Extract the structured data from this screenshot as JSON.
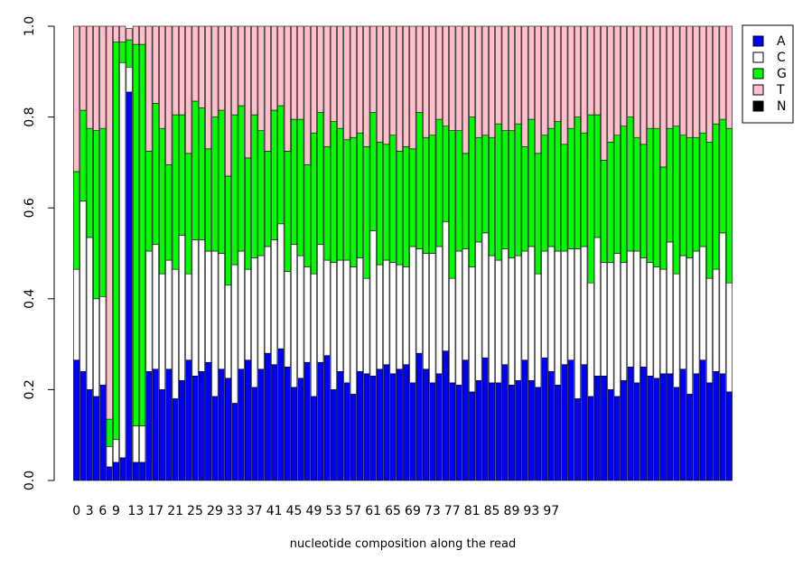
{
  "chart_data": {
    "type": "bar",
    "stacked": true,
    "title": "",
    "xlabel": "nucleotide composition along the read",
    "ylabel": "",
    "ylim": [
      0,
      1
    ],
    "yticks": [
      "0.0",
      "0.2",
      "0.4",
      "0.6",
      "0.8",
      "1.0"
    ],
    "xtick_labels": [
      "0",
      "3",
      "6",
      "9",
      "13",
      "17",
      "21",
      "25",
      "29",
      "33",
      "37",
      "41",
      "45",
      "49",
      "53",
      "57",
      "61",
      "65",
      "69",
      "73",
      "77",
      "81",
      "85",
      "89",
      "93",
      "97"
    ],
    "xtick_positions": [
      0,
      2,
      4,
      6,
      9,
      12,
      15,
      18,
      21,
      24,
      27,
      30,
      33,
      36,
      39,
      42,
      45,
      48,
      51,
      54,
      57,
      60,
      63,
      66,
      69,
      72
    ],
    "positions": [
      0,
      1,
      2,
      3,
      4,
      5,
      6,
      7,
      8,
      9,
      10,
      11,
      12,
      13,
      14,
      15,
      16,
      17,
      18,
      19,
      20,
      21,
      22,
      23,
      24,
      25,
      26,
      27,
      28,
      29,
      30,
      31,
      32,
      33,
      34,
      35,
      36,
      37,
      38,
      39,
      40,
      41,
      42,
      43,
      44,
      45,
      46,
      47,
      48,
      49,
      50,
      51,
      52,
      53,
      54,
      55,
      56,
      57,
      58,
      59,
      60,
      61,
      62,
      63,
      64,
      65,
      66,
      67,
      68,
      69,
      70,
      71,
      72,
      73,
      74,
      75,
      76,
      77,
      78,
      79,
      80,
      81,
      82,
      83,
      84,
      85,
      86,
      87,
      88,
      89,
      90,
      91,
      92,
      93,
      94,
      95,
      96,
      97,
      98,
      99
    ],
    "legend_position": "top-right",
    "series": [
      {
        "name": "A",
        "color": "#0000ff",
        "values": [
          0.265,
          0.24,
          0.2,
          0.185,
          0.21,
          0.03,
          0.04,
          0.05,
          0.855,
          0.04,
          0.04,
          0.24,
          0.245,
          0.2,
          0.245,
          0.18,
          0.22,
          0.265,
          0.23,
          0.24,
          0.26,
          0.185,
          0.245,
          0.225,
          0.17,
          0.245,
          0.265,
          0.205,
          0.245,
          0.28,
          0.255,
          0.29,
          0.25,
          0.205,
          0.225,
          0.26,
          0.185,
          0.26,
          0.275,
          0.2,
          0.24,
          0.215,
          0.19,
          0.24,
          0.235,
          0.23,
          0.245,
          0.255,
          0.235,
          0.245,
          0.255,
          0.215,
          0.28,
          0.245,
          0.215,
          0.235,
          0.285,
          0.215,
          0.21,
          0.265,
          0.195,
          0.22,
          0.27,
          0.215,
          0.215,
          0.255,
          0.21,
          0.22,
          0.265,
          0.22,
          0.205,
          0.27,
          0.24,
          0.21,
          0.255,
          0.265,
          0.18,
          0.255,
          0.185,
          0.23,
          0.23,
          0.2,
          0.185,
          0.22,
          0.25,
          0.215,
          0.25,
          0.23,
          0.225,
          0.235,
          0.235,
          0.205,
          0.245,
          0.19,
          0.235,
          0.265,
          0.215,
          0.24,
          0.235,
          0.195
        ]
      },
      {
        "name": "C",
        "color": "#ffffff",
        "values": [
          0.2,
          0.375,
          0.335,
          0.215,
          0.195,
          0.045,
          0.05,
          0.87,
          0.055,
          0.08,
          0.08,
          0.265,
          0.275,
          0.255,
          0.24,
          0.285,
          0.32,
          0.19,
          0.3,
          0.29,
          0.245,
          0.32,
          0.255,
          0.205,
          0.305,
          0.26,
          0.2,
          0.285,
          0.25,
          0.235,
          0.275,
          0.275,
          0.21,
          0.315,
          0.27,
          0.21,
          0.27,
          0.26,
          0.21,
          0.28,
          0.245,
          0.27,
          0.28,
          0.25,
          0.21,
          0.32,
          0.23,
          0.23,
          0.245,
          0.23,
          0.215,
          0.3,
          0.23,
          0.255,
          0.285,
          0.28,
          0.285,
          0.23,
          0.295,
          0.245,
          0.275,
          0.305,
          0.275,
          0.28,
          0.27,
          0.255,
          0.28,
          0.275,
          0.24,
          0.295,
          0.25,
          0.235,
          0.275,
          0.295,
          0.25,
          0.245,
          0.33,
          0.26,
          0.25,
          0.305,
          0.25,
          0.28,
          0.315,
          0.26,
          0.255,
          0.29,
          0.24,
          0.25,
          0.245,
          0.23,
          0.29,
          0.25,
          0.25,
          0.3,
          0.27,
          0.25,
          0.23,
          0.225,
          0.31,
          0.24
        ]
      },
      {
        "name": "G",
        "color": "#00ff00",
        "values": [
          0.215,
          0.2,
          0.24,
          0.37,
          0.37,
          0.06,
          0.875,
          0.045,
          0.06,
          0.84,
          0.84,
          0.22,
          0.31,
          0.32,
          0.21,
          0.34,
          0.265,
          0.265,
          0.305,
          0.29,
          0.225,
          0.295,
          0.315,
          0.24,
          0.33,
          0.32,
          0.245,
          0.315,
          0.275,
          0.21,
          0.285,
          0.26,
          0.265,
          0.275,
          0.3,
          0.225,
          0.31,
          0.29,
          0.25,
          0.31,
          0.29,
          0.265,
          0.285,
          0.275,
          0.29,
          0.26,
          0.27,
          0.255,
          0.28,
          0.25,
          0.265,
          0.215,
          0.3,
          0.255,
          0.26,
          0.28,
          0.21,
          0.325,
          0.265,
          0.21,
          0.33,
          0.23,
          0.215,
          0.26,
          0.3,
          0.26,
          0.28,
          0.29,
          0.23,
          0.28,
          0.265,
          0.255,
          0.26,
          0.285,
          0.235,
          0.265,
          0.29,
          0.25,
          0.37,
          0.27,
          0.225,
          0.265,
          0.26,
          0.3,
          0.295,
          0.25,
          0.25,
          0.295,
          0.305,
          0.225,
          0.25,
          0.325,
          0.265,
          0.265,
          0.25,
          0.25,
          0.3,
          0.32,
          0.25,
          0.34
        ]
      },
      {
        "name": "T",
        "color": "#ffc0cb",
        "values": [
          0.32,
          0.185,
          0.225,
          0.23,
          0.225,
          0.865,
          0.035,
          0.035,
          0.025,
          0.04,
          0.04,
          0.275,
          0.17,
          0.225,
          0.305,
          0.195,
          0.195,
          0.28,
          0.165,
          0.18,
          0.27,
          0.2,
          0.185,
          0.33,
          0.195,
          0.175,
          0.29,
          0.195,
          0.23,
          0.275,
          0.185,
          0.175,
          0.275,
          0.205,
          0.205,
          0.305,
          0.235,
          0.19,
          0.265,
          0.21,
          0.225,
          0.25,
          0.245,
          0.235,
          0.265,
          0.19,
          0.255,
          0.26,
          0.24,
          0.275,
          0.265,
          0.27,
          0.19,
          0.245,
          0.24,
          0.205,
          0.22,
          0.23,
          0.23,
          0.28,
          0.2,
          0.245,
          0.24,
          0.245,
          0.215,
          0.23,
          0.23,
          0.215,
          0.265,
          0.205,
          0.28,
          0.24,
          0.225,
          0.21,
          0.26,
          0.225,
          0.2,
          0.235,
          0.195,
          0.195,
          0.295,
          0.255,
          0.24,
          0.22,
          0.2,
          0.245,
          0.26,
          0.225,
          0.225,
          0.31,
          0.225,
          0.22,
          0.24,
          0.245,
          0.245,
          0.235,
          0.255,
          0.215,
          0.205,
          0.225
        ]
      },
      {
        "name": "N",
        "color": "#000000",
        "values": [
          0,
          0,
          0,
          0,
          0,
          0,
          0,
          0,
          0,
          0,
          0,
          0,
          0,
          0,
          0,
          0,
          0,
          0,
          0,
          0,
          0,
          0,
          0,
          0,
          0,
          0,
          0,
          0,
          0,
          0,
          0,
          0,
          0,
          0,
          0,
          0,
          0,
          0,
          0,
          0,
          0,
          0,
          0,
          0,
          0,
          0,
          0,
          0,
          0,
          0,
          0,
          0,
          0,
          0,
          0,
          0,
          0,
          0,
          0,
          0,
          0,
          0,
          0,
          0,
          0,
          0,
          0,
          0,
          0,
          0,
          0,
          0,
          0,
          0,
          0,
          0,
          0,
          0,
          0,
          0,
          0,
          0,
          0,
          0,
          0,
          0,
          0,
          0,
          0,
          0,
          0,
          0,
          0,
          0,
          0,
          0,
          0,
          0,
          0,
          0
        ]
      }
    ]
  }
}
